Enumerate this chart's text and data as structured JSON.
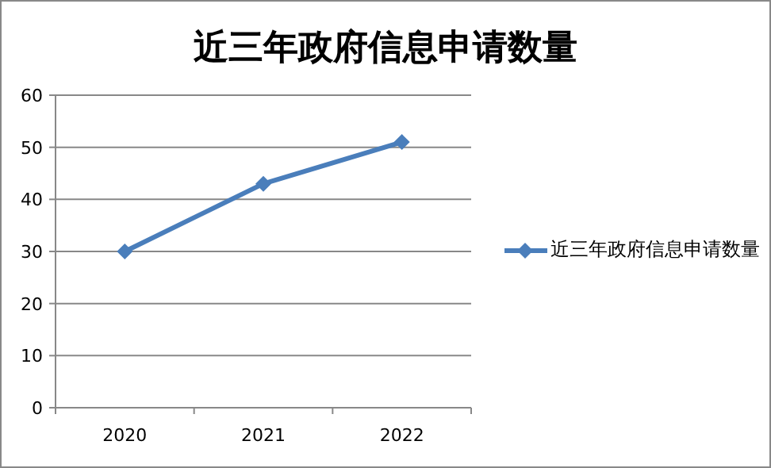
{
  "chart_data": {
    "type": "line",
    "title": "近三年政府信息申请数量",
    "categories": [
      "2020",
      "2021",
      "2022"
    ],
    "series": [
      {
        "name": "近三年政府信息申请数量",
        "color": "#4a7ebb",
        "values": [
          30,
          43,
          51
        ]
      }
    ],
    "ylim": [
      0,
      60
    ],
    "yticks": [
      0,
      10,
      20,
      30,
      40,
      50,
      60
    ],
    "grid": "y",
    "legend": "right",
    "marker": "diamond",
    "line_style": "solid"
  }
}
